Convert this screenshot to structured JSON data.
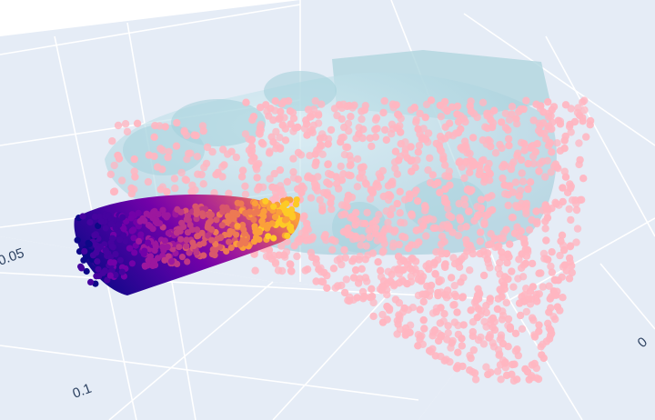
{
  "chart_data": {
    "type": "scatter",
    "dimension": "3d",
    "grid": true,
    "colors": {
      "background": "#ffffff",
      "scene_pane": "#e5ecf6",
      "grid_line": "#ffffff",
      "tick_text": "#2a3f5f",
      "point_cloud": "#ffb6c1",
      "mesh": "#add8e6",
      "colorscale": [
        "#0d0887",
        "#46039f",
        "#7201a8",
        "#9c179e",
        "#bd3786",
        "#d8576b",
        "#ed7953",
        "#fb9f3a",
        "#fdca26",
        "#f0f921"
      ]
    },
    "axes": {
      "left_ticks": [
        "0.05",
        "0.1"
      ],
      "right_ticks": [
        "0"
      ]
    },
    "traces": [
      {
        "kind": "mesh",
        "color_name": "lightblue",
        "opacity": 0.6
      },
      {
        "kind": "scatter3d",
        "color_name": "pink",
        "marker": "circle"
      },
      {
        "kind": "surface",
        "colorscale": "plasma"
      }
    ]
  }
}
